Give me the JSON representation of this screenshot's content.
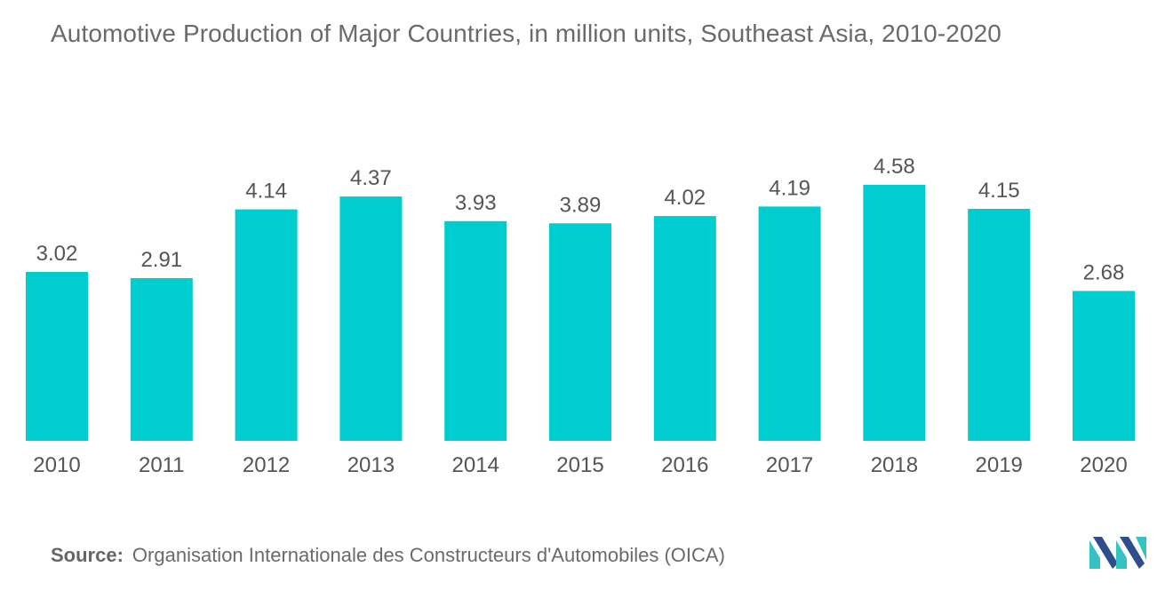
{
  "title": "Automotive Production of Major Countries, in million units, Southeast Asia, 2010-2020",
  "source_label": "Source:",
  "source_text": "Organisation Internationale des Constructeurs d'Automobiles (OICA)",
  "colors": {
    "bar": "#00cdd0",
    "text": "#555555",
    "title": "#6a6a6a",
    "logo_teal": "#35c2c4",
    "logo_blue": "#2e4d8c"
  },
  "logo_icon": "company-logo-icon",
  "chart_data": {
    "type": "bar",
    "title": "Automotive Production of Major Countries, in million units, Southeast Asia, 2010-2020",
    "xlabel": "",
    "ylabel": "",
    "categories": [
      "2010",
      "2011",
      "2012",
      "2013",
      "2014",
      "2015",
      "2016",
      "2017",
      "2018",
      "2019",
      "2020"
    ],
    "values": [
      3.02,
      2.91,
      4.14,
      4.37,
      3.93,
      3.89,
      4.02,
      4.19,
      4.58,
      4.15,
      2.68
    ],
    "value_labels": [
      "3.02",
      "2.91",
      "4.14",
      "4.37",
      "3.93",
      "3.89",
      "4.02",
      "4.19",
      "4.58",
      "4.15",
      "2.68"
    ],
    "ylim": [
      0,
      5
    ],
    "grid": false,
    "legend": "none"
  }
}
